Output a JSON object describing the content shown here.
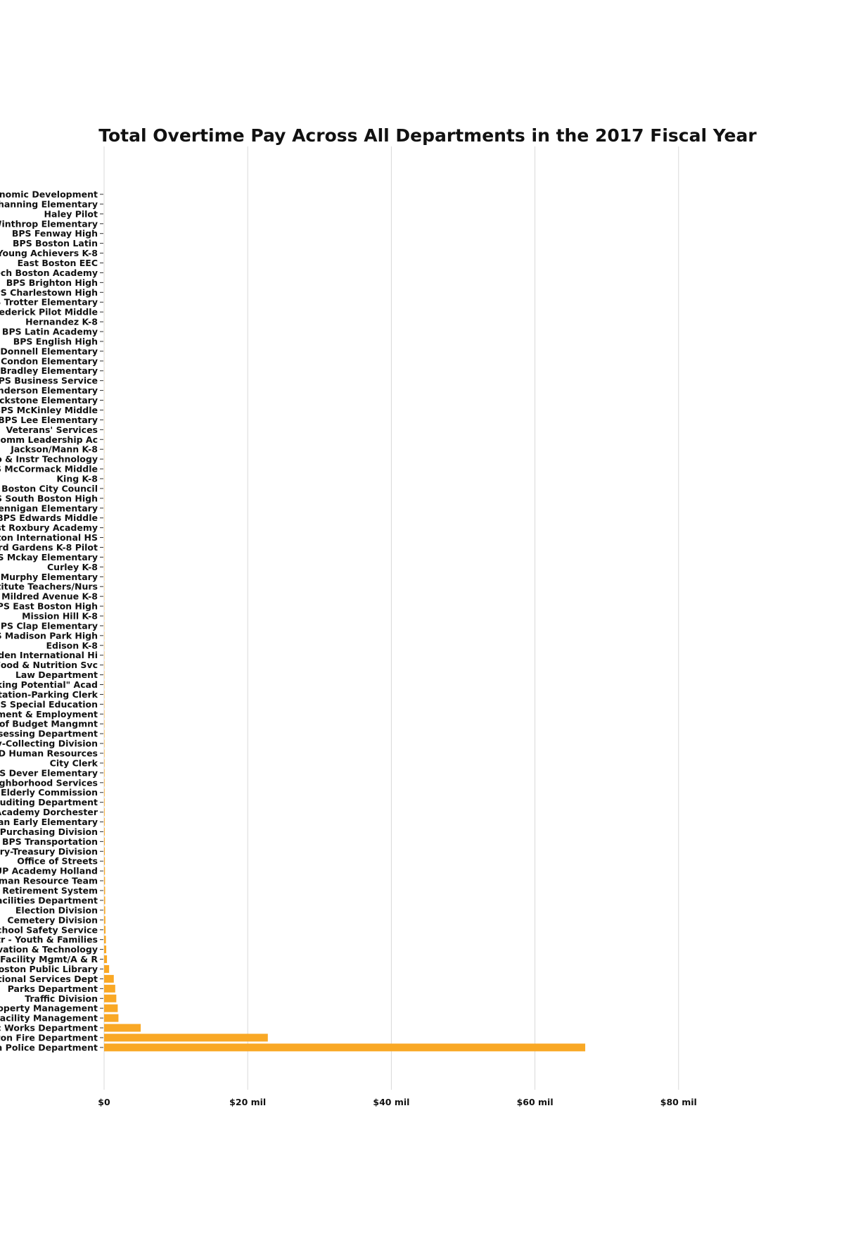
{
  "chart_data": {
    "type": "bar",
    "orientation": "horizontal",
    "title": "Total Overtime Pay Across All Departments in the 2017 Fiscal Year",
    "xlabel": "",
    "ylabel": "",
    "xlim": [
      0,
      100000000
    ],
    "x_ticks": [
      {
        "value": 0,
        "label": "$0"
      },
      {
        "value": 20000000,
        "label": "$20 mil"
      },
      {
        "value": 40000000,
        "label": "$40 mil"
      },
      {
        "value": 60000000,
        "label": "$60 mil"
      },
      {
        "value": 80000000,
        "label": "$80 mil"
      }
    ],
    "grid": "vertical",
    "bar_color": "#f9a825",
    "categories": [
      "onomic Development",
      "Channing Elementary",
      "Haley Pilot",
      "Winthrop Elementary",
      "BPS Fenway High",
      "BPS Boston Latin",
      "Young Achievers K-8",
      "East Boston EEC",
      "ech Boston Academy",
      "BPS Brighton High",
      "PS Charlestown High",
      "PS Trotter Elementary",
      "rederick Pilot Middle",
      "Hernandez K-8",
      "BPS Latin Academy",
      "BPS English High",
      "O'Donnell Elementary",
      "S Condon Elementary",
      "S Bradley Elementary",
      "BPS Business Service",
      "enderson Elementary",
      "ackstone Elementary",
      "BPS McKinley Middle",
      "BPS Lee Elementary",
      "Veterans' Services",
      "Comm Leadership Ac",
      "Jackson/Mann K-8",
      "fo & Instr Technology",
      "S McCormack Middle",
      "King K-8",
      "Boston City Council",
      "PS South Boston High",
      "Hennigan Elementary",
      "BPS Edwards Middle",
      "est Roxbury Academy",
      "ston International HS",
      "ard Gardens K-8 Pilot",
      "PS Mckay Elementary",
      "Curley K-8",
      "S Murphy Elementary",
      "titute Teachers/Nurs",
      "Mildred Avenue K-8",
      "BPS East Boston High",
      "Mission Hill K-8",
      "BPS Clap Elementary",
      "PS Madison Park High",
      "Edison K-8",
      "wden International Hi",
      "Food & Nutrition Svc",
      "Law Department",
      "cking Potential\" Acad",
      "rtation-Parking Clerk",
      "PS Special Education",
      "ement & Employment",
      "e of Budget Mangmnt",
      "ssessing Department",
      "ry-Collecting Division",
      "SD Human Resources",
      "City Clerk",
      "PS Dever Elementary",
      "eighborhood Services",
      "Elderly Commission",
      "Auditing Department",
      "Academy Dorchester",
      "pan Early Elementary",
      "D Purchasing Division",
      "BPS Transportation",
      "ury-Treasury Division",
      "Office of Streets",
      "UP Academy Holland",
      "uman Resource Team",
      "n Retirement System",
      "Facilities Department",
      "Election Division",
      "Cemetery Division",
      "School Safety Service",
      "ntr - Youth & Families",
      "ovation & Technology",
      "S Facility Mgmt/A & R",
      "Boston Public Library",
      "ctional Services Dept",
      "Parks Department",
      "Traffic Division",
      "roperty Management",
      "Facility Management",
      "ic Works Department",
      "ston Fire Department",
      "on Police Department"
    ],
    "values": [
      1000,
      1500,
      2000,
      2500,
      3000,
      3500,
      4000,
      4500,
      5000,
      5500,
      6000,
      6500,
      7000,
      7500,
      8000,
      8500,
      9000,
      9500,
      10000,
      11000,
      12000,
      13000,
      14000,
      15000,
      16000,
      17000,
      18000,
      19000,
      20000,
      21000,
      22000,
      23000,
      24000,
      25000,
      26000,
      27000,
      28000,
      29000,
      30000,
      31000,
      32000,
      33000,
      34000,
      35000,
      36000,
      37000,
      38000,
      39000,
      40000,
      42000,
      44000,
      46000,
      48000,
      50000,
      52000,
      55000,
      58000,
      61000,
      64000,
      67000,
      70000,
      74000,
      78000,
      82000,
      86000,
      90000,
      95000,
      100000,
      110000,
      120000,
      130000,
      140000,
      150000,
      160000,
      180000,
      200000,
      250000,
      300000,
      400000,
      700000,
      1350000,
      1550000,
      1700000,
      1900000,
      2000000,
      5100000,
      22800000,
      67000000
    ]
  }
}
